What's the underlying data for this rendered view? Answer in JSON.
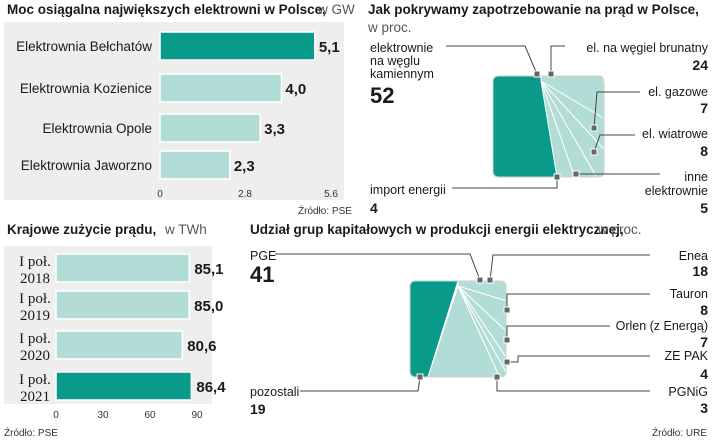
{
  "colors": {
    "accent": "#0a9a8a",
    "light": "#b2dcd6",
    "panel_bg": "#eeeeee",
    "leader": "#444444"
  },
  "chart_data": [
    {
      "type": "bar",
      "title": "Moc osiągalna największych elektrowni w Polsce,",
      "unit": "w GW",
      "categories": [
        "Elektrownia Bełchatów",
        "Elektrownia Kozienice",
        "Elektrownia Opole",
        "Elektrownia Jaworzno"
      ],
      "values": [
        5.1,
        4.0,
        3.3,
        2.3
      ],
      "value_labels": [
        "5,1",
        "4,0",
        "3,3",
        "2,3"
      ],
      "highlight_index": 0,
      "xlim": [
        0,
        5.6
      ],
      "ticks": [
        "0",
        "2.8",
        "5.6"
      ],
      "source": "Źródło: PSE"
    },
    {
      "type": "pie",
      "title": "Jak pokrywamy zapotrzebowanie na prąd w Polsce,",
      "unit": "w proc.",
      "main_slice": {
        "label": "elektrownie na węglu kamiennym",
        "label_lines": [
          "elektrownie",
          "na węglu",
          "kamiennym"
        ],
        "value": 52,
        "value_label": "52"
      },
      "slices": [
        {
          "label": "el. na węgiel brunatny",
          "value": 24,
          "value_label": "24"
        },
        {
          "label": "el. gazowe",
          "value": 7,
          "value_label": "7"
        },
        {
          "label": "el. wiatrowe",
          "value": 8,
          "value_label": "8"
        },
        {
          "label": "inne elektrownie",
          "label_lines": [
            "inne",
            "elektrownie"
          ],
          "value": 5,
          "value_label": "5"
        },
        {
          "label": "import energii",
          "value": 4,
          "value_label": "4"
        }
      ]
    },
    {
      "type": "bar",
      "title": "Krajowe zużycie prądu,",
      "unit": "w TWh",
      "categories": [
        "I poł. 2018",
        "I poł. 2019",
        "I poł. 2020",
        "I poł. 2021"
      ],
      "category_lines": [
        [
          "I poł.",
          "2018"
        ],
        [
          "I poł.",
          "2019"
        ],
        [
          "I poł.",
          "2020"
        ],
        [
          "I poł.",
          "2021"
        ]
      ],
      "values": [
        85.1,
        85.0,
        80.6,
        86.4
      ],
      "value_labels": [
        "85,1",
        "85,0",
        "80,6",
        "86,4"
      ],
      "highlight_index": 3,
      "xlim": [
        0,
        90
      ],
      "ticks": [
        "0",
        "30",
        "60",
        "90"
      ],
      "source": "Źródło: PSE"
    },
    {
      "type": "pie",
      "title": "Udział grup kapitałowych w produkcji energii elektrycznej,",
      "unit": "w proc.",
      "main_slice": {
        "label": "PGE",
        "value": 41,
        "value_label": "41"
      },
      "slices": [
        {
          "label": "Enea",
          "value": 18,
          "value_label": "18"
        },
        {
          "label": "Tauron",
          "value": 8,
          "value_label": "8"
        },
        {
          "label": "Orlen (z Energą)",
          "value": 7,
          "value_label": "7"
        },
        {
          "label": "ZE PAK",
          "value": 4,
          "value_label": "4"
        },
        {
          "label": "PGNiG",
          "value": 3,
          "value_label": "3"
        },
        {
          "label": "pozostali",
          "value": 19,
          "value_label": "19"
        }
      ],
      "source": "Źródło: URE"
    }
  ]
}
